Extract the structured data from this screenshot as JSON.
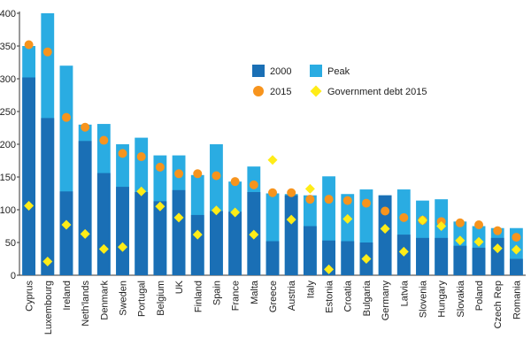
{
  "chart_data": {
    "type": "bar",
    "title": "",
    "xlabel": "",
    "ylabel": "",
    "ylim": [
      0,
      400
    ],
    "yticks": [
      0,
      50,
      100,
      150,
      200,
      250,
      300,
      350,
      400
    ],
    "categories": [
      "Cyprus",
      "Luxembourg",
      "Ireland",
      "Neth'lands",
      "Denmark",
      "Sweden",
      "Portugal",
      "Belgium",
      "UK",
      "Finland",
      "Spain",
      "France",
      "Malta",
      "Greece",
      "Austria",
      "Italy",
      "Estonia",
      "Croatia",
      "Bulgaria",
      "Germany",
      "Latvia",
      "Slovenia",
      "Hungary",
      "Slovakia",
      "Poland",
      "Czech Rep",
      "Romania"
    ],
    "series": [
      {
        "name": "2000",
        "kind": "bar",
        "color": "#1a6fb5",
        "values": [
          302,
          240,
          128,
          205,
          156,
          135,
          127,
          113,
          130,
          92,
          98,
          97,
          127,
          52,
          122,
          75,
          53,
          52,
          50,
          122,
          62,
          57,
          57,
          45,
          42,
          57,
          25
        ]
      },
      {
        "name": "Peak",
        "kind": "bar",
        "color": "#2aace2",
        "values": [
          350,
          400,
          320,
          230,
          231,
          200,
          210,
          183,
          183,
          153,
          200,
          143,
          166,
          125,
          124,
          122,
          151,
          124,
          131,
          122,
          131,
          114,
          116,
          82,
          75,
          72,
          72
        ]
      },
      {
        "name": "2015",
        "kind": "dot",
        "color": "#f7941d",
        "values": [
          352,
          341,
          241,
          226,
          206,
          186,
          181,
          165,
          155,
          155,
          152,
          143,
          138,
          126,
          126,
          116,
          116,
          114,
          110,
          98,
          88,
          84,
          82,
          80,
          77,
          68,
          58
        ]
      },
      {
        "name": "Government debt 2015",
        "kind": "diamond",
        "color": "#ffec17",
        "values": [
          106,
          21,
          77,
          63,
          40,
          43,
          128,
          105,
          88,
          62,
          99,
          96,
          62,
          176,
          85,
          132,
          9,
          86,
          25,
          71,
          36,
          84,
          75,
          53,
          51,
          41,
          39
        ]
      }
    ],
    "legend": {
      "placement": "top-right",
      "entries": [
        "2000",
        "Peak",
        "2015",
        "Government debt 2015"
      ]
    },
    "grid": false
  }
}
